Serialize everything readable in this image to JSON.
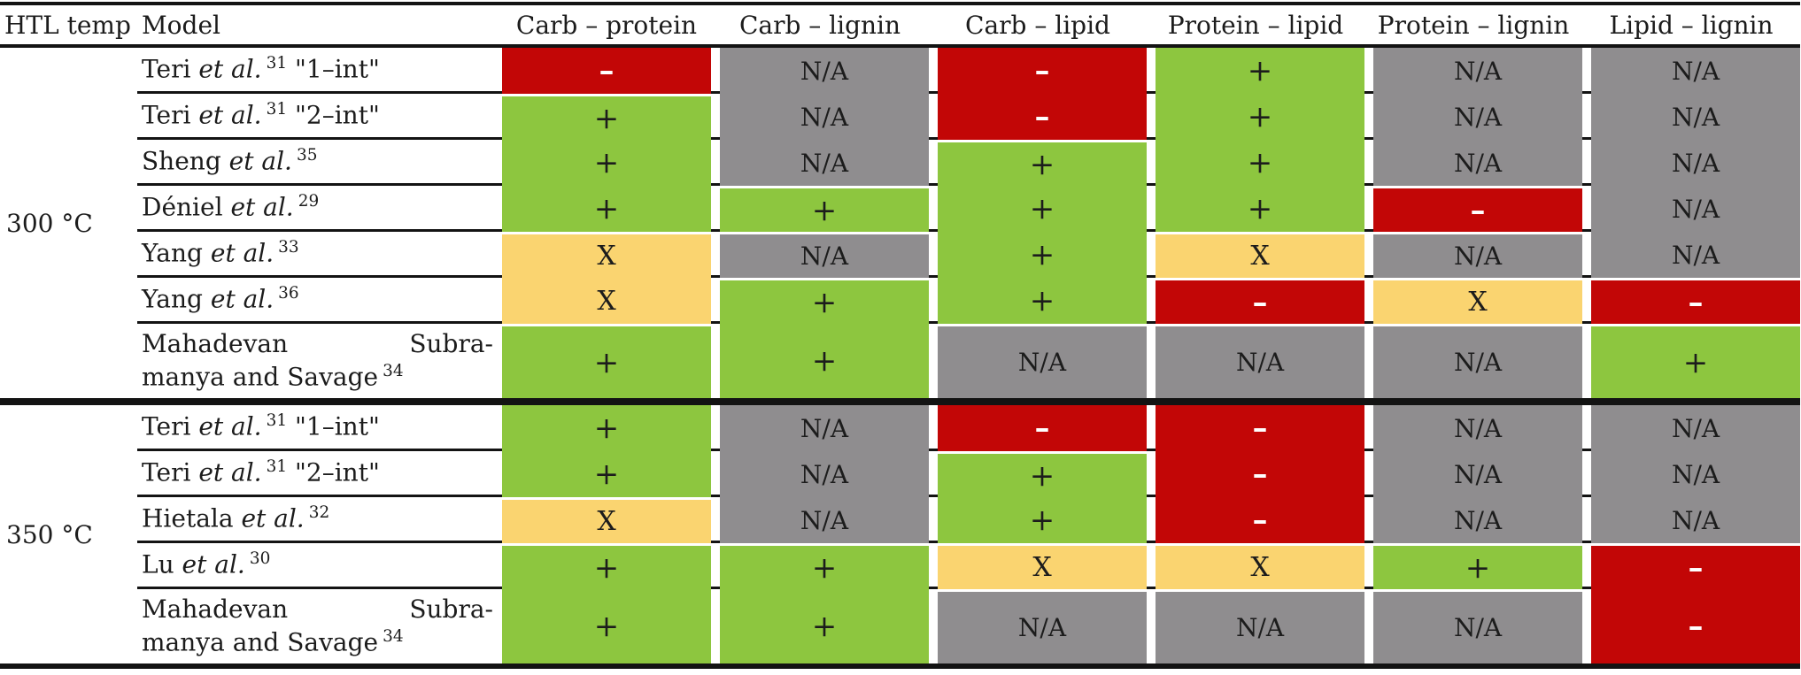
{
  "table": {
    "headers": [
      {
        "label": "HTL temp"
      },
      {
        "label": "Model"
      },
      {
        "label": "Carb – protein"
      },
      {
        "label": "Carb – lignin"
      },
      {
        "label": "Carb – lipid"
      },
      {
        "label": "Protein – lipid"
      },
      {
        "label": "Protein – lignin"
      },
      {
        "label": "Lipid – lignin"
      }
    ],
    "colors": {
      "positive": "#8dc63f",
      "negative": "#c20606",
      "mixed": "#fad470",
      "na": "#8f8d8f",
      "line": "#131313",
      "text": "#1c1c1c",
      "negative_text": "#ffffff"
    },
    "symbols": {
      "positive": "+",
      "negative": "–",
      "mixed": "X",
      "not_available": "N/A"
    },
    "sections": [
      {
        "temp": "300 °C",
        "rows": [
          {
            "model": [
              {
                "t": "Teri "
              },
              {
                "t": "et al.",
                "italic": true
              },
              {
                "t": "31",
                "sup": true
              },
              {
                "t": " \"1–int\""
              }
            ],
            "cells": [
              "–",
              "N/A",
              "–",
              "+",
              "N/A",
              "N/A"
            ]
          },
          {
            "model": [
              {
                "t": "Teri "
              },
              {
                "t": "et al.",
                "italic": true
              },
              {
                "t": "31",
                "sup": true
              },
              {
                "t": " \"2–int\""
              }
            ],
            "cells": [
              "+",
              "N/A",
              "–",
              "+",
              "N/A",
              "N/A"
            ]
          },
          {
            "model": [
              {
                "t": "Sheng "
              },
              {
                "t": "et al.",
                "italic": true
              },
              {
                "t": "35",
                "sup": true
              }
            ],
            "cells": [
              "+",
              "N/A",
              "+",
              "+",
              "N/A",
              "N/A"
            ]
          },
          {
            "model": [
              {
                "t": "Déniel "
              },
              {
                "t": "et al.",
                "italic": true
              },
              {
                "t": "29",
                "sup": true
              }
            ],
            "cells": [
              "+",
              "+",
              "+",
              "+",
              "–",
              "N/A"
            ]
          },
          {
            "model": [
              {
                "t": "Yang "
              },
              {
                "t": "et al.",
                "italic": true
              },
              {
                "t": "33",
                "sup": true
              }
            ],
            "cells": [
              "X",
              "N/A",
              "+",
              "X",
              "N/A",
              "N/A"
            ]
          },
          {
            "model": [
              {
                "t": "Yang "
              },
              {
                "t": "et al.",
                "italic": true
              },
              {
                "t": "36",
                "sup": true
              }
            ],
            "cells": [
              "X",
              "+",
              "+",
              "–",
              "X",
              "–"
            ]
          },
          {
            "model": [
              {
                "spread": [
                  "Mahadevan",
                  "Subra-"
                ]
              },
              {
                "t": "manya and Savage"
              },
              {
                "t": "34",
                "sup": true
              }
            ],
            "cells": [
              "+",
              "+",
              "N/A",
              "N/A",
              "N/A",
              "+"
            ]
          }
        ]
      },
      {
        "temp": "350 °C",
        "rows": [
          {
            "model": [
              {
                "t": "Teri "
              },
              {
                "t": "et al.",
                "italic": true
              },
              {
                "t": "31",
                "sup": true
              },
              {
                "t": " \"1–int\""
              }
            ],
            "cells": [
              "+",
              "N/A",
              "–",
              "–",
              "N/A",
              "N/A"
            ]
          },
          {
            "model": [
              {
                "t": "Teri "
              },
              {
                "t": "et al.",
                "italic": true
              },
              {
                "t": "31",
                "sup": true
              },
              {
                "t": " \"2–int\""
              }
            ],
            "cells": [
              "+",
              "N/A",
              "+",
              "–",
              "N/A",
              "N/A"
            ]
          },
          {
            "model": [
              {
                "t": "Hietala "
              },
              {
                "t": "et al.",
                "italic": true
              },
              {
                "t": "32",
                "sup": true
              }
            ],
            "cells": [
              "X",
              "N/A",
              "+",
              "–",
              "N/A",
              "N/A"
            ]
          },
          {
            "model": [
              {
                "t": "Lu "
              },
              {
                "t": "et al.",
                "italic": true
              },
              {
                "t": "30",
                "sup": true
              }
            ],
            "cells": [
              "+",
              "+",
              "X",
              "X",
              "+",
              "–"
            ]
          },
          {
            "model": [
              {
                "spread": [
                  "Mahadevan",
                  "Subra-"
                ]
              },
              {
                "t": "manya and Savage"
              },
              {
                "t": "34",
                "sup": true
              }
            ],
            "cells": [
              "+",
              "+",
              "N/A",
              "N/A",
              "N/A",
              "–"
            ]
          }
        ]
      }
    ]
  }
}
